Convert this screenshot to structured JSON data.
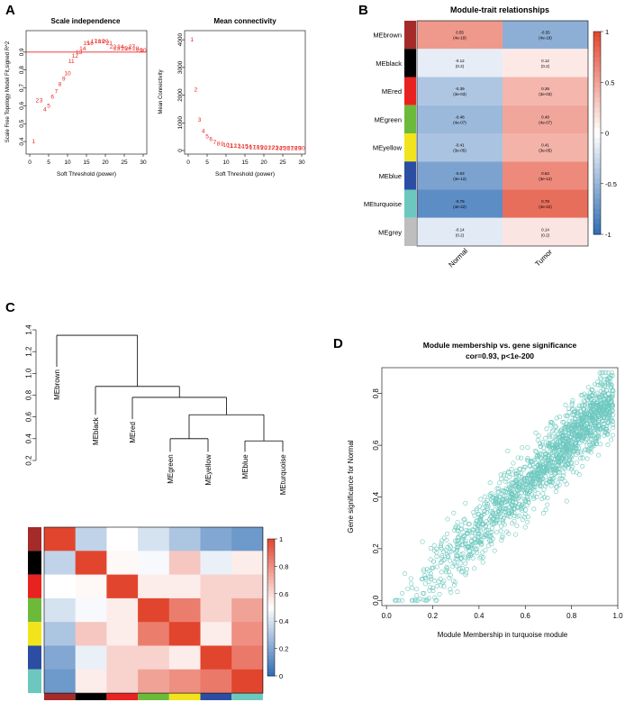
{
  "panels": {
    "a": "A",
    "b": "B",
    "c": "C",
    "d": "D"
  },
  "colors": {
    "red": "#e8231f",
    "axis": "#000000",
    "low": "#2f6db4",
    "high": "#e2452e",
    "mid": "#ffffff",
    "scatter": "#6cc8bf",
    "modules": {
      "MEbrown": "#a52a2a",
      "MEblack": "#000000",
      "MEred": "#e8231f",
      "MEgreen": "#6cba3a",
      "MEyellow": "#f2e41c",
      "MEblue": "#2b4ea2",
      "MEturquoise": "#6cc8bf",
      "MEgrey": "#bebebe"
    }
  },
  "chart_data": [
    {
      "id": "scale-independence",
      "type": "scatter",
      "title": "Scale independence",
      "xlabel": "Soft Threshold (power)",
      "ylabel": "Scale Free Topology Model Fit,signed R^2",
      "xlim": [
        0,
        30
      ],
      "ylim": [
        0.35,
        1.0
      ],
      "xticks": [
        0,
        5,
        10,
        15,
        20,
        25,
        30
      ],
      "yticks": [
        0.4,
        0.5,
        0.6,
        0.7,
        0.8,
        0.9
      ],
      "threshold_line": 0.9,
      "x": [
        1,
        2,
        3,
        4,
        5,
        6,
        7,
        8,
        9,
        10,
        11,
        12,
        13,
        14,
        15,
        16,
        17,
        18,
        19,
        20,
        21,
        22,
        23,
        24,
        25,
        26,
        27,
        28,
        29,
        30
      ],
      "y": [
        0.4,
        0.63,
        0.63,
        0.58,
        0.6,
        0.65,
        0.68,
        0.72,
        0.75,
        0.78,
        0.85,
        0.88,
        0.9,
        0.92,
        0.95,
        0.95,
        0.96,
        0.96,
        0.96,
        0.96,
        0.95,
        0.93,
        0.92,
        0.93,
        0.92,
        0.92,
        0.93,
        0.92,
        0.91,
        0.91
      ],
      "point_labels": [
        "1",
        "2",
        "3",
        "4",
        "5",
        "6",
        "7",
        "8",
        "9",
        "10",
        "11",
        "12",
        "13",
        "14",
        "15",
        "16",
        "17",
        "18",
        "19",
        "20",
        "21",
        "22",
        "23",
        "24",
        "25",
        "26",
        "27",
        "28",
        "29",
        "30"
      ]
    },
    {
      "id": "mean-connectivity",
      "type": "scatter",
      "title": "Mean connectivity",
      "xlabel": "Soft Threshold (power)",
      "ylabel": "Mean Connectivity",
      "xlim": [
        0,
        30
      ],
      "ylim": [
        0,
        4200
      ],
      "xticks": [
        0,
        5,
        10,
        15,
        20,
        25,
        30
      ],
      "yticks": [
        0,
        1000,
        2000,
        3000,
        4000
      ],
      "x": [
        1,
        2,
        3,
        4,
        5,
        6,
        7,
        8,
        9,
        10,
        11,
        12,
        13,
        14,
        15,
        16,
        17,
        18,
        19,
        20,
        21,
        22,
        23,
        24,
        25,
        26,
        27,
        28,
        29,
        30
      ],
      "y": [
        4000,
        2200,
        1100,
        700,
        500,
        400,
        300,
        250,
        220,
        200,
        180,
        170,
        160,
        150,
        140,
        130,
        120,
        115,
        110,
        105,
        100,
        95,
        90,
        88,
        85,
        82,
        80,
        78,
        76,
        74
      ],
      "point_labels": [
        "1",
        "2",
        "3",
        "4",
        "5",
        "6",
        "7",
        "8",
        "9",
        "10",
        "11",
        "12",
        "13",
        "14",
        "15",
        "16",
        "17",
        "18",
        "19",
        "20",
        "21",
        "22",
        "23",
        "24",
        "25",
        "26",
        "27",
        "28",
        "29",
        "30"
      ]
    },
    {
      "id": "module-trait",
      "type": "heatmap",
      "title": "Module-trait relationships",
      "columns": [
        "Normal",
        "Tumor"
      ],
      "rows": [
        "MEbrown",
        "MEblack",
        "MEred",
        "MEgreen",
        "MEyellow",
        "MEblue",
        "MEturquoise",
        "MEgrey"
      ],
      "values": [
        [
          0.55,
          -0.55
        ],
        [
          -0.12,
          0.12
        ],
        [
          -0.39,
          0.39
        ],
        [
          -0.48,
          0.48
        ],
        [
          -0.41,
          0.41
        ],
        [
          -0.63,
          0.63
        ],
        [
          -0.78,
          0.78
        ],
        [
          -0.14,
          0.14
        ]
      ],
      "pvalues": [
        [
          "(4e-19)",
          "(4e-19)"
        ],
        [
          "(0.2)",
          "(0.2)"
        ],
        [
          "(3e-03)",
          "(3e-03)"
        ],
        [
          "(4e-07)",
          "(4e-07)"
        ],
        [
          "(3e-05)",
          "(3e-05)"
        ],
        [
          "(3e-12)",
          "(3e-12)"
        ],
        [
          "(4e-22)",
          "(4e-22)"
        ],
        [
          "(0.2)",
          "(0.2)"
        ]
      ],
      "colorbar_ticks": [
        "1",
        "0.5",
        "0",
        "-0.5",
        "-1"
      ],
      "colorbar_range": [
        -1,
        1
      ]
    },
    {
      "id": "dendrogram",
      "type": "dendrogram",
      "yticks": [
        0.2,
        0.4,
        0.6,
        0.8,
        1.0,
        1.2,
        1.4
      ],
      "ylim": [
        0.2,
        1.4
      ],
      "leaves": [
        "MEbrown",
        "MEblack",
        "MEred",
        "MEgreen",
        "MEyellow",
        "MEblue",
        "MEturquoise"
      ],
      "merges": [
        {
          "height": 0.4,
          "left": "MEgreen",
          "right": "MEyellow"
        },
        {
          "height": 0.38,
          "left": "MEblue",
          "right": "MEturquoise"
        },
        {
          "height": 0.62,
          "left": "green-yellow",
          "right": "blue-turquoise"
        },
        {
          "height": 0.78,
          "left": "MEred",
          "right": "4-cluster"
        },
        {
          "height": 0.88,
          "left": "MEblack",
          "right": "5-cluster"
        },
        {
          "height": 1.35,
          "left": "MEbrown",
          "right": "6-cluster"
        }
      ]
    },
    {
      "id": "eigengene-adjacency",
      "type": "heatmap",
      "rows": [
        "MEbrown",
        "MEblack",
        "MEred",
        "MEgreen",
        "MEyellow",
        "MEblue",
        "MEturquoise"
      ],
      "matrix": [
        [
          1.0,
          0.35,
          0.5,
          0.4,
          0.3,
          0.2,
          0.15
        ],
        [
          0.35,
          1.0,
          0.52,
          0.48,
          0.65,
          0.45,
          0.55
        ],
        [
          0.5,
          0.52,
          1.0,
          0.55,
          0.55,
          0.62,
          0.62
        ],
        [
          0.4,
          0.48,
          0.55,
          1.0,
          0.85,
          0.62,
          0.75
        ],
        [
          0.3,
          0.65,
          0.55,
          0.85,
          1.0,
          0.55,
          0.8
        ],
        [
          0.2,
          0.45,
          0.62,
          0.62,
          0.55,
          1.0,
          0.86
        ],
        [
          0.15,
          0.55,
          0.62,
          0.75,
          0.8,
          0.86,
          1.0
        ]
      ],
      "colorbar_ticks": [
        "1",
        "0.8",
        "0.6",
        "0.4",
        "0.2",
        "0"
      ],
      "colorbar_range": [
        0,
        1
      ]
    },
    {
      "id": "module-membership",
      "type": "scatter",
      "title": "Module membership vs. gene significance",
      "subtitle": "cor=0.93, p<1e-200",
      "xlabel": "Module Membership in turquoise module",
      "ylabel": "Gene significance for  Normal",
      "xlim": [
        -0.02,
        1.0
      ],
      "ylim": [
        -0.02,
        0.9
      ],
      "xticks": [
        0.0,
        0.2,
        0.4,
        0.6,
        0.8,
        1.0
      ],
      "yticks": [
        0.0,
        0.2,
        0.4,
        0.6,
        0.8
      ],
      "cloud": {
        "xmin": 0.03,
        "xmax": 0.98,
        "slope": 0.88,
        "intercept": -0.08,
        "spread": 0.07,
        "n": 1600
      }
    }
  ]
}
